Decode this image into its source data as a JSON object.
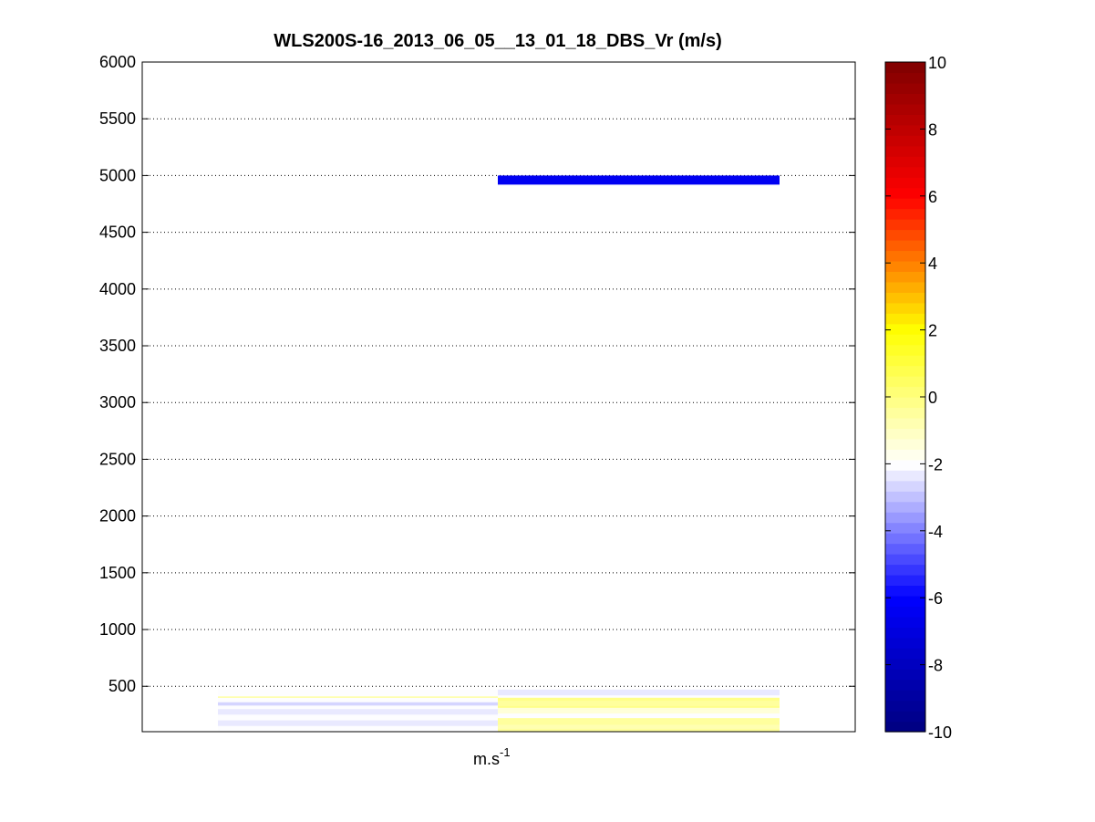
{
  "chart_data": {
    "type": "heatmap",
    "title": "WLS200S-16_2013_06_05__13_01_18_DBS_Vr (m/s)",
    "xlabel_base": "m.s",
    "xlabel_sup": "-1",
    "ylabel": "",
    "ylim": [
      100,
      6000
    ],
    "yticks": [
      "500",
      "1000",
      "1500",
      "2000",
      "2500",
      "3000",
      "3500",
      "4000",
      "4500",
      "5000",
      "5500",
      "6000"
    ],
    "grid": "horizontal-dotted",
    "colorbar": {
      "clim": [
        -10,
        10
      ],
      "ticks": [
        "-10",
        "-8",
        "-6",
        "-4",
        "-2",
        "0",
        "2",
        "4",
        "6",
        "8",
        "10"
      ],
      "levels": 64,
      "colors": [
        "#00007f",
        "#0000ff",
        "#ffffff",
        "#ffff00",
        "#ff0000",
        "#7f0000"
      ]
    },
    "columns": [
      {
        "cells": [
          {
            "y0": 100,
            "y1": 150,
            "value": -2.0
          },
          {
            "y0": 150,
            "y1": 200,
            "value": -2.2
          },
          {
            "y0": 200,
            "y1": 250,
            "value": -2.0
          },
          {
            "y0": 250,
            "y1": 300,
            "value": -2.3
          },
          {
            "y0": 300,
            "y1": 330,
            "value": -2.0
          },
          {
            "y0": 330,
            "y1": 360,
            "value": -2.8
          },
          {
            "y0": 360,
            "y1": 400,
            "value": -1.9
          },
          {
            "y0": 400,
            "y1": 410,
            "value": -0.2
          },
          {
            "y0": 410,
            "y1": 475,
            "value": -2.1
          }
        ]
      },
      {
        "cells": [
          {
            "y0": 100,
            "y1": 130,
            "value": -0.4
          },
          {
            "y0": 130,
            "y1": 160,
            "value": -0.7
          },
          {
            "y0": 160,
            "y1": 220,
            "value": -0.6
          },
          {
            "y0": 220,
            "y1": 260,
            "value": -1.9
          },
          {
            "y0": 260,
            "y1": 310,
            "value": -1.5
          },
          {
            "y0": 310,
            "y1": 330,
            "value": -0.1
          },
          {
            "y0": 330,
            "y1": 370,
            "value": -0.5
          },
          {
            "y0": 370,
            "y1": 400,
            "value": -0.2
          },
          {
            "y0": 400,
            "y1": 420,
            "value": -2.0
          },
          {
            "y0": 420,
            "y1": 470,
            "value": -2.2
          },
          {
            "y0": 4920,
            "y1": 5000,
            "value": -6.3
          }
        ]
      }
    ]
  }
}
